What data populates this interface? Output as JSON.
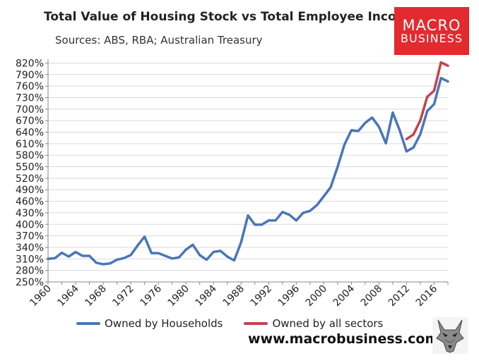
{
  "colors": {
    "households": "#4a76b8",
    "all_sectors": "#c0454b",
    "grid": "#d9d9d9",
    "logo_bg": "#e32a2e"
  },
  "logo": {
    "line1": "MACRO",
    "line2": "BUSINESS"
  },
  "website": "www.macrobusiness.com.au",
  "wolf_icon": "wolf-head-icon",
  "chart_data": {
    "type": "line",
    "title": "Total Value of Housing Stock vs Total Employee Income",
    "subtitle": "Sources: ABS, RBA; Australian Treasury",
    "xlabel": "",
    "ylabel": "",
    "xlim": [
      1960,
      2018
    ],
    "ylim": [
      250,
      830
    ],
    "y_ticks": [
      250,
      280,
      310,
      340,
      370,
      400,
      430,
      460,
      490,
      520,
      550,
      580,
      610,
      640,
      670,
      700,
      730,
      760,
      790,
      820
    ],
    "y_tick_labels": [
      "250%",
      "280%",
      "310%",
      "340%",
      "370%",
      "400%",
      "430%",
      "460%",
      "490%",
      "520%",
      "550%",
      "580%",
      "610%",
      "640%",
      "670%",
      "700%",
      "730%",
      "760%",
      "790%",
      "820%"
    ],
    "x_ticks": [
      1960,
      1964,
      1968,
      1972,
      1976,
      1980,
      1984,
      1988,
      1992,
      1996,
      2000,
      2004,
      2008,
      2012,
      2016
    ],
    "x_tick_labels": [
      "1960",
      "1964",
      "1968",
      "1972",
      "1976",
      "1980",
      "1984",
      "1988",
      "1992",
      "1996",
      "2000",
      "2004",
      "2008",
      "2012",
      "2016"
    ],
    "grid": true,
    "legend_position": "bottom",
    "series": [
      {
        "name": "Owned by Households",
        "color": "#4a76b8",
        "x": [
          1960,
          1961,
          1962,
          1963,
          1964,
          1965,
          1966,
          1967,
          1968,
          1969,
          1970,
          1971,
          1972,
          1973,
          1974,
          1975,
          1976,
          1977,
          1978,
          1979,
          1980,
          1981,
          1982,
          1983,
          1984,
          1985,
          1986,
          1987,
          1988,
          1989,
          1990,
          1991,
          1992,
          1993,
          1994,
          1995,
          1996,
          1997,
          1998,
          1999,
          2000,
          2001,
          2002,
          2003,
          2004,
          2005,
          2006,
          2007,
          2008,
          2009,
          2010,
          2011,
          2012,
          2013,
          2014,
          2015,
          2016,
          2017,
          2018
        ],
        "values": [
          310,
          312,
          326,
          316,
          328,
          318,
          318,
          300,
          296,
          298,
          308,
          312,
          320,
          345,
          368,
          325,
          325,
          318,
          311,
          314,
          334,
          347,
          320,
          308,
          328,
          331,
          316,
          306,
          353,
          423,
          399,
          399,
          410,
          410,
          432,
          425,
          410,
          430,
          435,
          450,
          473,
          497,
          550,
          608,
          645,
          643,
          664,
          678,
          654,
          611,
          691,
          645,
          590,
          600,
          635,
          695,
          713,
          781,
          772
        ]
      },
      {
        "name": "Owned by all sectors",
        "color": "#c0454b",
        "x": [
          2012,
          2013,
          2014,
          2015,
          2016,
          2017,
          2018
        ],
        "values": [
          622,
          634,
          671,
          732,
          748,
          822,
          813
        ]
      }
    ]
  }
}
